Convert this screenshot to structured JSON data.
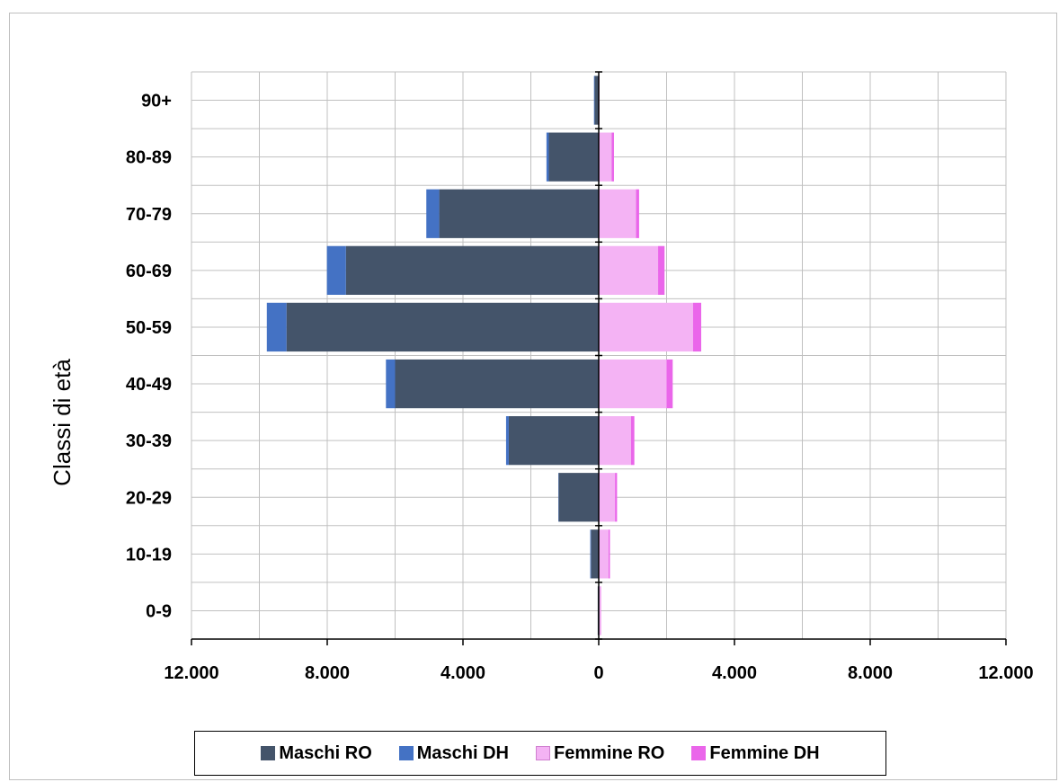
{
  "chart_data": {
    "type": "bar",
    "orientation": "horizontal",
    "stacked": true,
    "ylabel": "Classi di età",
    "categories": [
      "90+",
      "80-89",
      "70-79",
      "60-69",
      "50-59",
      "40-49",
      "30-39",
      "20-29",
      "10-19",
      "0-9"
    ],
    "x_tick_labels": [
      "12.000",
      "8.000",
      "4.000",
      "0",
      "4.000",
      "8.000",
      "12.000"
    ],
    "xlim": [
      -12000,
      12000
    ],
    "grid": true,
    "legend_position": "bottom",
    "series": [
      {
        "name": "Maschi RO",
        "side": "left",
        "color": "#44546a",
        "values": [
          120,
          1470,
          4700,
          7450,
          9200,
          6000,
          2650,
          1180,
          230,
          30
        ]
      },
      {
        "name": "Maschi DH",
        "side": "left",
        "color": "#4472c4",
        "values": [
          20,
          70,
          380,
          560,
          580,
          270,
          80,
          10,
          20,
          0
        ]
      },
      {
        "name": "Femmine RO",
        "side": "right",
        "color": "#f4b3f4",
        "values": [
          20,
          380,
          1100,
          1750,
          2780,
          2000,
          950,
          480,
          290,
          60
        ]
      },
      {
        "name": "Femmine DH",
        "side": "right",
        "color": "#ea66ea",
        "values": [
          5,
          70,
          90,
          190,
          240,
          180,
          100,
          60,
          40,
          10
        ]
      }
    ]
  }
}
